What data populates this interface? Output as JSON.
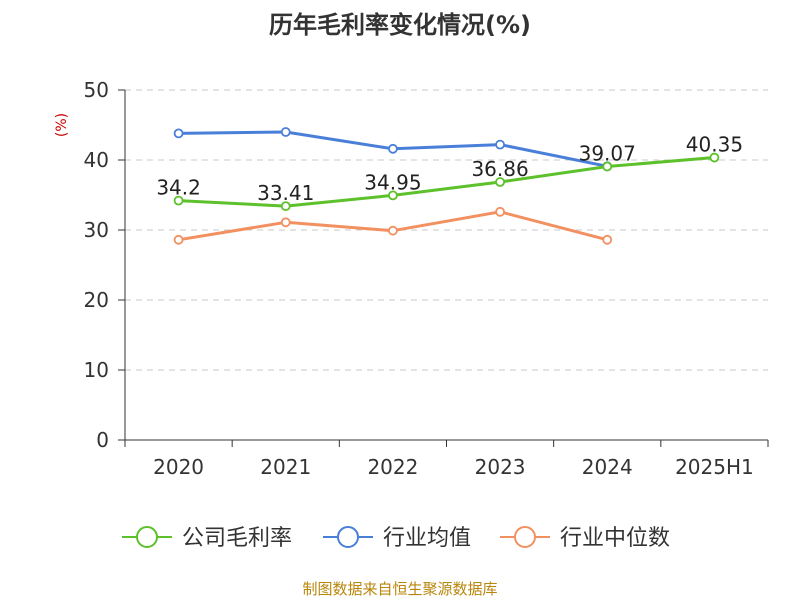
{
  "chart_data": {
    "type": "line",
    "title": "历年毛利率变化情况(%)",
    "ylabel": "(%)",
    "categories": [
      "2020",
      "2021",
      "2022",
      "2023",
      "2024",
      "2025H1"
    ],
    "ylim": [
      0,
      50
    ],
    "yticks": [
      0,
      10,
      20,
      30,
      40,
      50
    ],
    "grid": true,
    "legend_position": "bottom",
    "series": [
      {
        "name": "公司毛利率",
        "color": "#5cc12a",
        "values": [
          34.2,
          33.41,
          34.95,
          36.86,
          39.07,
          40.35
        ],
        "labels": [
          "34.2",
          "33.41",
          "34.95",
          "36.86",
          "39.07",
          "40.35"
        ]
      },
      {
        "name": "行业均值",
        "color": "#4a7fd9",
        "values": [
          43.8,
          44.0,
          41.6,
          42.2,
          39.1,
          null
        ]
      },
      {
        "name": "行业中位数",
        "color": "#f29060",
        "values": [
          28.6,
          31.1,
          29.9,
          32.6,
          28.6,
          null
        ]
      }
    ]
  },
  "source": "制图数据来自恒生聚源数据库"
}
